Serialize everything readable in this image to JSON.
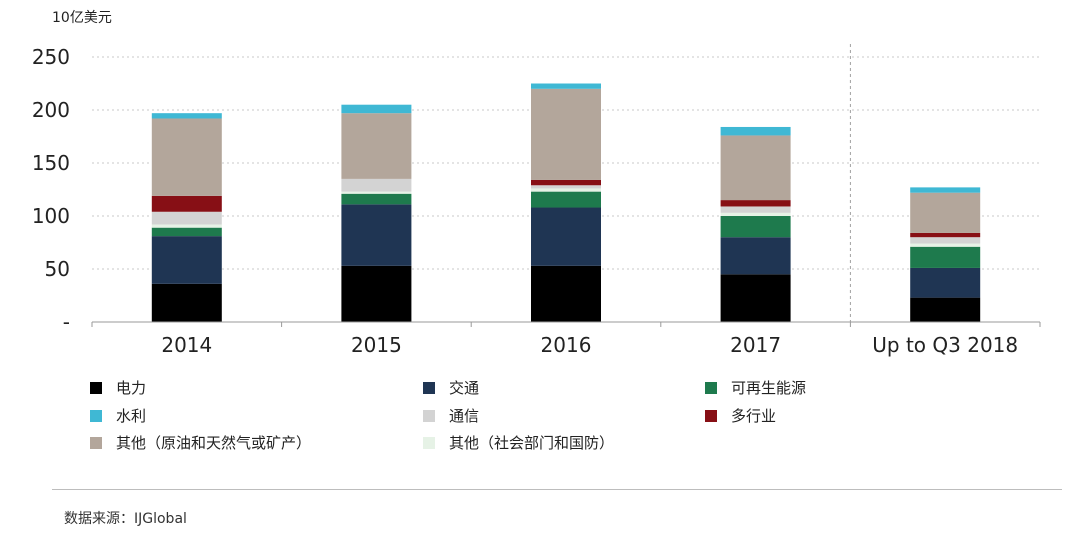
{
  "chart_data": {
    "type": "stacked-bar",
    "unit_label": "10亿美元",
    "y_ticks": [
      "250",
      "200",
      "150",
      "100",
      "50",
      "-"
    ],
    "y_tick_values": [
      250,
      200,
      150,
      100,
      50,
      0
    ],
    "ylim": [
      0,
      250
    ],
    "categories": [
      "2014",
      "2015",
      "2016",
      "2017",
      "Up to Q3 2018"
    ],
    "series": [
      {
        "name": "电力",
        "color": "#000000",
        "values": [
          36,
          53,
          53,
          45,
          23
        ]
      },
      {
        "name": "交通",
        "color": "#1f3553",
        "values": [
          45,
          58,
          55,
          35,
          28
        ]
      },
      {
        "name": "可再生能源",
        "color": "#1e7a4d",
        "values": [
          8,
          10,
          15,
          20,
          20
        ]
      },
      {
        "name": "其他（社会部门和国防）",
        "color": "#e6f2e6",
        "values": [
          3,
          2,
          3,
          3,
          3
        ]
      },
      {
        "name": "通信",
        "color": "#d3d3d3",
        "values": [
          12,
          12,
          3,
          6,
          6
        ]
      },
      {
        "name": "多行业",
        "color": "#870f15",
        "values": [
          15,
          0,
          5,
          6,
          4
        ]
      },
      {
        "name": "其他（原油和天然气或矿产）",
        "color": "#b3a69b",
        "values": [
          73,
          62,
          86,
          61,
          38
        ]
      },
      {
        "name": "水利",
        "color": "#3fb8d4",
        "values": [
          5,
          8,
          5,
          8,
          5
        ]
      }
    ],
    "legend_order": [
      "电力",
      "交通",
      "可再生能源",
      "水利",
      "通信",
      "多行业",
      "其他（原油和天然气或矿产）",
      "其他（社会部门和国防）"
    ],
    "grid": true,
    "separator_before": "Up to Q3 2018"
  },
  "source": "数据来源：IJGlobal"
}
